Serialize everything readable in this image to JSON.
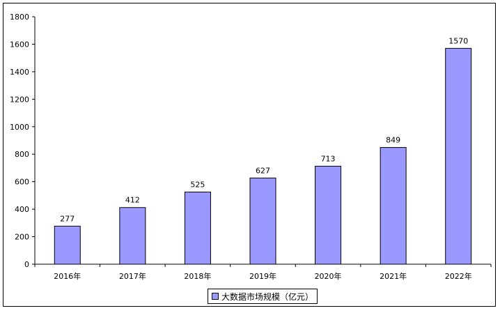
{
  "chart_data": {
    "type": "bar",
    "categories": [
      "2016年",
      "2017年",
      "2018年",
      "2019年",
      "2020年",
      "2021年",
      "2022年"
    ],
    "series": [
      {
        "name": "大数据市场规模（亿元）",
        "values": [
          277,
          412,
          525,
          627,
          713,
          849,
          1570
        ],
        "color": "#9999ff"
      }
    ],
    "data_labels": [
      "277",
      "412",
      "525",
      "627",
      "713",
      "849",
      "1570"
    ],
    "y_ticks": [
      "0",
      "200",
      "400",
      "600",
      "800",
      "1000",
      "1200",
      "1400",
      "1600",
      "1800"
    ],
    "ylim": [
      0,
      1800
    ],
    "grid": false,
    "legend_position": "bottom",
    "bar_border_color": "#000000"
  }
}
